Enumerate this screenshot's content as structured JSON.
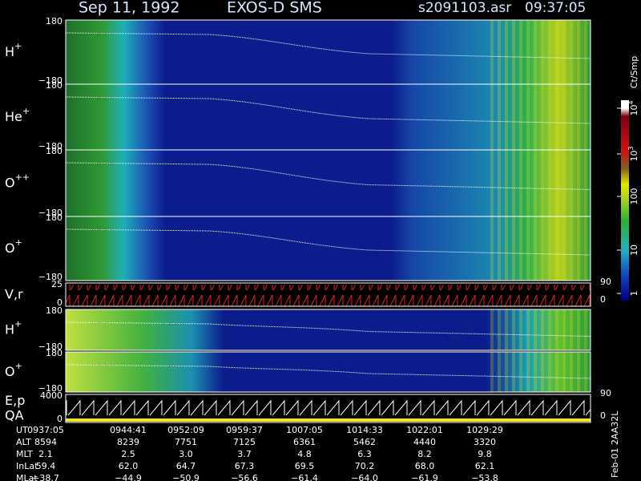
{
  "header": {
    "date": "Sep 11, 1992",
    "instrument": "EXOS-D SMS",
    "file": "s2091103.asr",
    "time": "09:37:05"
  },
  "panels": [
    {
      "label": "H",
      "sup": "+",
      "ticks": [
        "180",
        "−180"
      ]
    },
    {
      "label": "He",
      "sup": "+",
      "ticks": [
        "180",
        "−180"
      ]
    },
    {
      "label": "O",
      "sup": "++",
      "ticks": [
        "180",
        "−180"
      ]
    },
    {
      "label": "O",
      "sup": "+",
      "ticks": [
        "180",
        "−180"
      ]
    },
    {
      "label": "V,r",
      "ticks": [
        "25",
        "0"
      ],
      "right_ticks": [
        "90",
        "0"
      ]
    },
    {
      "label": "H",
      "sup": "+",
      "ticks": [
        "180",
        "−180"
      ]
    },
    {
      "label": "O",
      "sup": "+",
      "ticks": [
        "180",
        "−180"
      ]
    },
    {
      "label": "E,p",
      "label2": "QA",
      "ticks": [
        "4000",
        "0"
      ],
      "right_ticks": [
        "90",
        "0"
      ]
    }
  ],
  "colorbar": {
    "unit": "Ct/Smp",
    "ticks": [
      {
        "base": "10",
        "sup": "4"
      },
      {
        "base": "10",
        "sup": "3"
      },
      {
        "base": "100"
      },
      {
        "base": "10"
      },
      {
        "base": "1"
      }
    ]
  },
  "footer": {
    "rows": [
      {
        "label": "UT",
        "values": [
          "0937:05",
          "0944:41",
          "0952:09",
          "0959:37",
          "1007:05",
          "1014:33",
          "1022:01",
          "1029:29"
        ]
      },
      {
        "label": "ALT",
        "values": [
          "8594",
          "8239",
          "7751",
          "7125",
          "6361",
          "5462",
          "4440",
          "3320"
        ]
      },
      {
        "label": "MLT",
        "values": [
          "2.1",
          "2.5",
          "3.0",
          "3.7",
          "4.8",
          "6.3",
          "8.2",
          "9.8"
        ]
      },
      {
        "label": "InLat",
        "values": [
          "59.4",
          "62.0",
          "64.7",
          "67.3",
          "69.5",
          "70.2",
          "68.0",
          "62.1"
        ]
      },
      {
        "label": "MLat",
        "values": [
          "−38.7",
          "−44.9",
          "−50.9",
          "−56.6",
          "−61.4",
          "−64.0",
          "−61.9",
          "−53.8"
        ]
      }
    ]
  },
  "side_note": "Feb-01 2AA32L"
}
